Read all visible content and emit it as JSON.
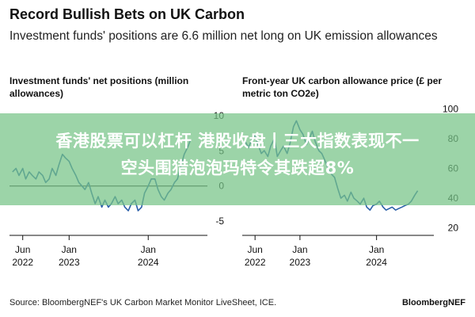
{
  "header": {
    "title": "Record Bullish Bets on UK Carbon",
    "subtitle": "Investment funds' positions are 6.6 million net long on UK emission allowances"
  },
  "overlay": {
    "line1": "香港股票可以杠杆 港股收盘丨三大指数表现不一",
    "line2": "空头围猎泡泡玛特令其跌超8%"
  },
  "footer": {
    "source": "Source: BloombergNEF's UK Carbon Market Monitor LiveSheet, ICE.",
    "brand": "BloombergNEF"
  },
  "colors": {
    "line": "#2b5fa8",
    "axis": "#111111",
    "banner": "#76c486"
  },
  "chart_data": [
    {
      "type": "line",
      "title": "Investment funds' net positions (million allowances)",
      "ylim": [
        -7,
        12
      ],
      "yticks": [
        10,
        5,
        0,
        -5
      ],
      "y_axis_side": "right",
      "zero_line": true,
      "x_range": [
        "2022-04-01",
        "2024-09-30"
      ],
      "xticks": [
        {
          "date": "2022-06-01",
          "label": "Jun",
          "year": "2022"
        },
        {
          "date": "2023-01-01",
          "label": "Jan",
          "year": "2023"
        },
        {
          "date": "2024-01-01",
          "label": "Jan",
          "year": "2024"
        }
      ],
      "series": [
        {
          "x": [
            "2022-04-15",
            "2022-05-01",
            "2022-05-15",
            "2022-06-01",
            "2022-06-15",
            "2022-07-01",
            "2022-07-15",
            "2022-08-01",
            "2022-08-15",
            "2022-09-01",
            "2022-09-15",
            "2022-10-01",
            "2022-10-15",
            "2022-11-01",
            "2022-11-15",
            "2022-12-01",
            "2022-12-15",
            "2023-01-01",
            "2023-01-15",
            "2023-02-01",
            "2023-02-15",
            "2023-03-01",
            "2023-03-15",
            "2023-04-01",
            "2023-04-15",
            "2023-05-01",
            "2023-05-15",
            "2023-06-01",
            "2023-06-15",
            "2023-07-01",
            "2023-07-15",
            "2023-08-01",
            "2023-08-15",
            "2023-09-01",
            "2023-09-15",
            "2023-10-01",
            "2023-10-15",
            "2023-11-01",
            "2023-11-15",
            "2023-12-01",
            "2023-12-15",
            "2024-01-01",
            "2024-01-15",
            "2024-02-01",
            "2024-02-15",
            "2024-03-01",
            "2024-03-15",
            "2024-04-01",
            "2024-04-15",
            "2024-05-01",
            "2024-05-15",
            "2024-06-01",
            "2024-06-15",
            "2024-07-01",
            "2024-07-15"
          ],
          "values": [
            2.0,
            2.5,
            1.5,
            2.5,
            1.0,
            2.0,
            1.5,
            1.0,
            2.0,
            1.5,
            0.5,
            1.0,
            2.5,
            1.5,
            3.0,
            4.5,
            4.0,
            3.5,
            2.5,
            1.5,
            0.5,
            0.0,
            -0.5,
            0.5,
            -1.0,
            -2.5,
            -1.5,
            -3.0,
            -2.0,
            -3.0,
            -2.5,
            -1.5,
            -2.5,
            -2.0,
            -3.0,
            -3.5,
            -2.5,
            -2.0,
            -3.5,
            -3.0,
            -1.0,
            0.0,
            1.0,
            1.0,
            -0.5,
            -1.5,
            -2.0,
            -1.0,
            -0.5,
            0.5,
            1.0,
            3.0,
            4.5,
            5.5,
            6.6
          ]
        }
      ]
    },
    {
      "type": "line",
      "title": "Front-year UK carbon allowance price (£ per metric ton CO2e)",
      "ylim": [
        15,
        105
      ],
      "yticks": [
        100,
        80,
        60,
        40,
        20
      ],
      "y_axis_side": "right",
      "zero_line": false,
      "x_range": [
        "2022-04-01",
        "2024-09-30"
      ],
      "xticks": [
        {
          "date": "2022-06-01",
          "label": "Jun",
          "year": "2022"
        },
        {
          "date": "2023-01-01",
          "label": "Jan",
          "year": "2023"
        },
        {
          "date": "2024-01-01",
          "label": "Jan",
          "year": "2024"
        }
      ],
      "series": [
        {
          "x": [
            "2022-04-15",
            "2022-05-01",
            "2022-05-15",
            "2022-06-01",
            "2022-06-15",
            "2022-07-01",
            "2022-07-15",
            "2022-08-01",
            "2022-08-15",
            "2022-09-01",
            "2022-09-15",
            "2022-10-01",
            "2022-10-15",
            "2022-11-01",
            "2022-11-15",
            "2022-12-01",
            "2022-12-15",
            "2023-01-01",
            "2023-01-15",
            "2023-02-01",
            "2023-02-15",
            "2023-03-01",
            "2023-03-15",
            "2023-04-01",
            "2023-04-15",
            "2023-05-01",
            "2023-05-15",
            "2023-06-01",
            "2023-06-15",
            "2023-07-01",
            "2023-07-15",
            "2023-08-01",
            "2023-08-15",
            "2023-09-01",
            "2023-09-15",
            "2023-10-01",
            "2023-10-15",
            "2023-11-01",
            "2023-11-15",
            "2023-12-01",
            "2023-12-15",
            "2024-01-01",
            "2024-01-15",
            "2024-02-01",
            "2024-02-15",
            "2024-03-01",
            "2024-03-15",
            "2024-04-01",
            "2024-04-15",
            "2024-05-01",
            "2024-05-15",
            "2024-06-01",
            "2024-06-15",
            "2024-07-01",
            "2024-07-15"
          ],
          "values": [
            78,
            74,
            79,
            82,
            76,
            70,
            72,
            68,
            75,
            80,
            68,
            72,
            75,
            70,
            77,
            88,
            92,
            86,
            83,
            76,
            80,
            85,
            78,
            72,
            70,
            65,
            60,
            56,
            54,
            46,
            40,
            42,
            38,
            44,
            40,
            38,
            36,
            40,
            34,
            32,
            35,
            36,
            38,
            34,
            32,
            33,
            34,
            32,
            33,
            34,
            35,
            36,
            38,
            42,
            45
          ]
        }
      ]
    }
  ]
}
